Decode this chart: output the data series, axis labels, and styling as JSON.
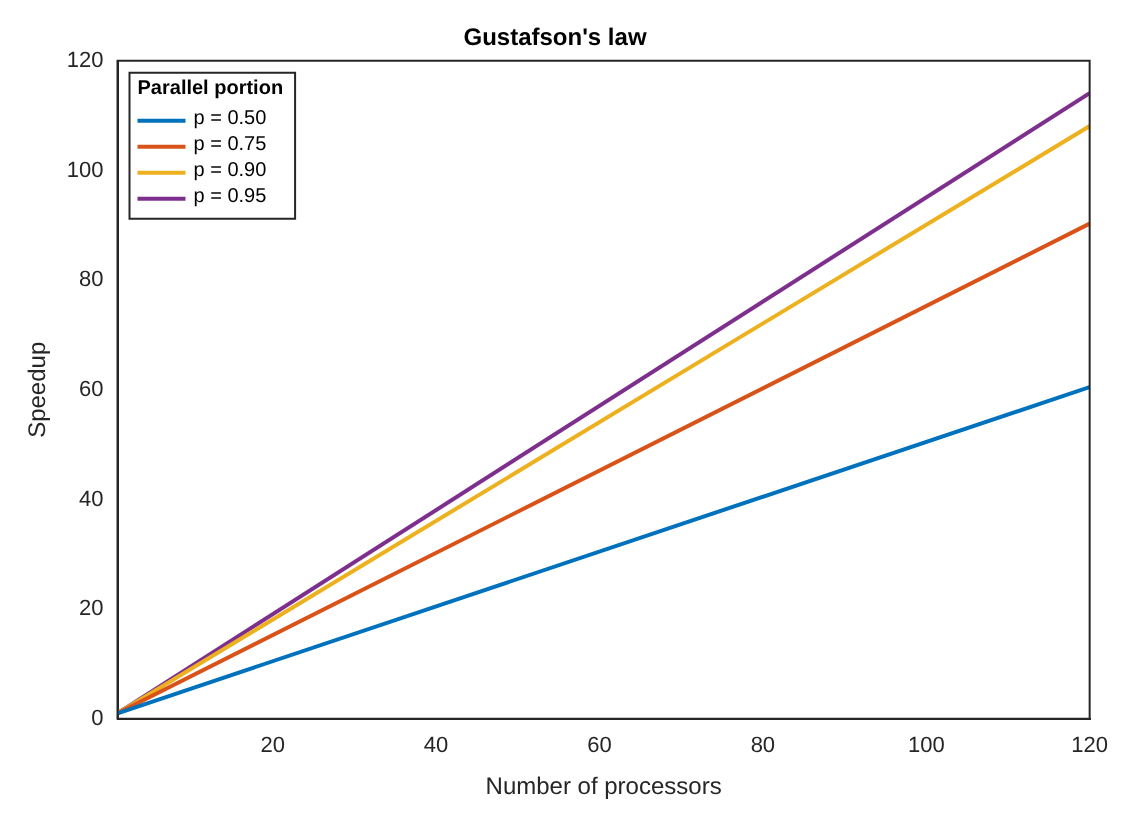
{
  "chart_data": {
    "type": "line",
    "title": "Gustafson's law",
    "xlabel": "Number of processors",
    "ylabel": "Speedup",
    "legend_title": "Parallel portion",
    "legend": "top left",
    "grid": false,
    "marker": "none",
    "line_style": "solid",
    "x": [
      1,
      120
    ],
    "xlim": [
      1,
      120
    ],
    "xticks": [
      20,
      40,
      60,
      80,
      100,
      120
    ],
    "ylim": [
      0,
      120
    ],
    "yticks": [
      0,
      20,
      40,
      60,
      80,
      100,
      120
    ],
    "series": [
      {
        "name": "p = 0.50",
        "color": "#0072bd",
        "values": [
          1,
          60.5
        ]
      },
      {
        "name": "p = 0.75",
        "color": "#d95319",
        "values": [
          1,
          90.3
        ]
      },
      {
        "name": "p = 0.90",
        "color": "#edb120",
        "values": [
          1,
          108.1
        ]
      },
      {
        "name": "p = 0.95",
        "color": "#7e2f8e",
        "values": [
          1,
          114.1
        ]
      }
    ]
  }
}
